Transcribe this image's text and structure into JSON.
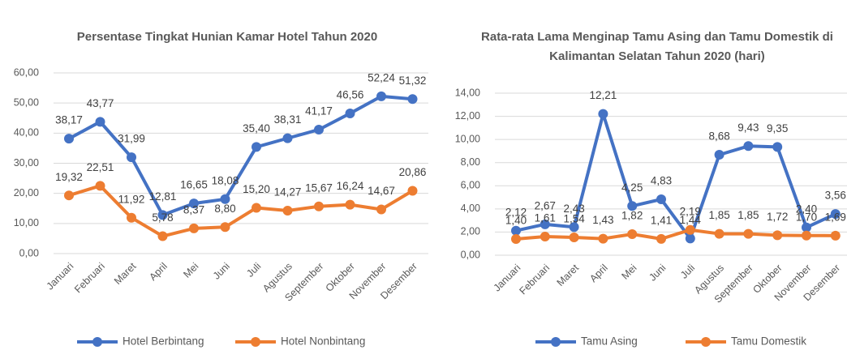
{
  "chart_data": [
    {
      "type": "line",
      "title": "Persentase Tingkat Hunian Kamar Hotel Tahun 2020",
      "categories": [
        "Januari",
        "Februari",
        "Maret",
        "April",
        "Mei",
        "Juni",
        "Juli",
        "Agustus",
        "September",
        "Oktober",
        "November",
        "Desember"
      ],
      "series": [
        {
          "name": "Hotel Berbintang",
          "color": "#4472c4",
          "values": [
            38.17,
            43.77,
            31.99,
            12.81,
            16.65,
            18.08,
            35.4,
            38.31,
            41.17,
            46.56,
            52.24,
            51.32
          ],
          "value_labels": [
            "38,17",
            "43,77",
            "31,99",
            "12,81",
            "16,65",
            "18,08",
            "35,40",
            "38,31",
            "41,17",
            "46,56",
            "52,24",
            "51,32"
          ]
        },
        {
          "name": "Hotel Nonbintang",
          "color": "#ed7d31",
          "values": [
            19.32,
            22.51,
            11.92,
            5.78,
            8.37,
            8.8,
            15.2,
            14.27,
            15.67,
            16.24,
            14.67,
            20.86
          ],
          "value_labels": [
            "19,32",
            "22,51",
            "11,92",
            "5,78",
            "8,37",
            "8,80",
            "15,20",
            "14,27",
            "15,67",
            "16,24",
            "14,67",
            "20,86"
          ]
        }
      ],
      "ylim": [
        0,
        60
      ],
      "yticks": [
        {
          "value": 0,
          "label": "0,00"
        },
        {
          "value": 10,
          "label": "10,00"
        },
        {
          "value": 20,
          "label": "20,00"
        },
        {
          "value": 30,
          "label": "30,00"
        },
        {
          "value": 40,
          "label": "40,00"
        },
        {
          "value": 50,
          "label": "50,00"
        },
        {
          "value": 60,
          "label": "60,00"
        }
      ],
      "grid": true,
      "legend": "bottom"
    },
    {
      "type": "line",
      "title": "Rata-rata Lama Menginap Tamu Asing dan Tamu Domestik di Kalimantan Selatan Tahun 2020 (hari)",
      "categories": [
        "Januari",
        "Februari",
        "Maret",
        "April",
        "Mei",
        "Juni",
        "Juli",
        "Agustus",
        "September",
        "Oktober",
        "November",
        "Desember"
      ],
      "series": [
        {
          "name": "Tamu Asing",
          "color": "#4472c4",
          "values": [
            2.12,
            2.67,
            2.43,
            12.21,
            4.25,
            4.83,
            1.44,
            8.68,
            9.43,
            9.35,
            2.4,
            3.56
          ],
          "value_labels": [
            "2,12",
            "2,67",
            "2,43",
            "12,21",
            "4,25",
            "4,83",
            "1,44",
            "8,68",
            "9,43",
            "9,35",
            "2,40",
            "3,56"
          ]
        },
        {
          "name": "Tamu Domestik",
          "color": "#ed7d31",
          "values": [
            1.4,
            1.61,
            1.54,
            1.43,
            1.82,
            1.41,
            2.19,
            1.85,
            1.85,
            1.72,
            1.7,
            1.69
          ],
          "value_labels": [
            "1,40",
            "1,61",
            "1,54",
            "1,43",
            "1,82",
            "1,41",
            "2,19",
            "1,85",
            "1,85",
            "1,72",
            "1,70",
            "1,69"
          ]
        }
      ],
      "ylim": [
        0,
        14
      ],
      "yticks": [
        {
          "value": 0,
          "label": "0,00"
        },
        {
          "value": 2,
          "label": "2,00"
        },
        {
          "value": 4,
          "label": "4,00"
        },
        {
          "value": 6,
          "label": "6,00"
        },
        {
          "value": 8,
          "label": "8,00"
        },
        {
          "value": 10,
          "label": "10,00"
        },
        {
          "value": 12,
          "label": "12,00"
        },
        {
          "value": 14,
          "label": "14,00"
        }
      ],
      "grid": true,
      "legend": "bottom"
    }
  ]
}
